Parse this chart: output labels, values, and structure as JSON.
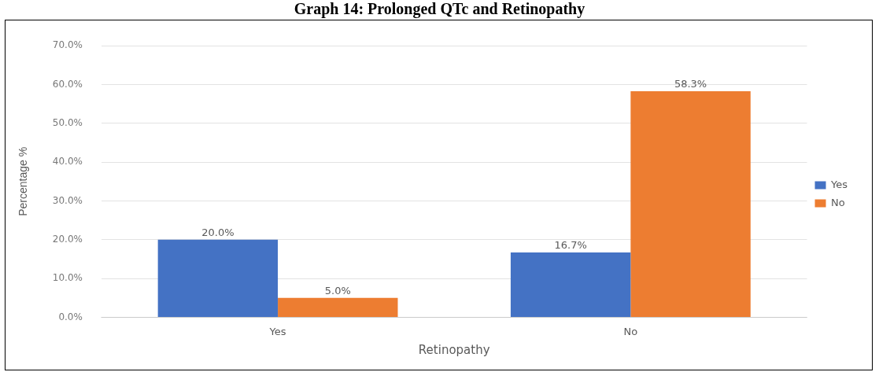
{
  "chart_data": {
    "type": "bar",
    "title": "Graph 14: Prolonged QTc and Retinopathy",
    "xlabel": "Retinopathy",
    "ylabel": "Percentage %",
    "categories": [
      "Yes",
      "No"
    ],
    "series": [
      {
        "name": "Yes",
        "color": "#4472c4",
        "values": [
          20.0,
          16.7
        ],
        "value_labels": [
          "20.0%",
          "16.7%"
        ]
      },
      {
        "name": "No",
        "color": "#ed7d31",
        "values": [
          5.0,
          58.3
        ],
        "value_labels": [
          "5.0%",
          "58.3%"
        ]
      }
    ],
    "ylim": [
      0,
      70
    ],
    "yticks": [
      {
        "value": 0,
        "label": "0.0%"
      },
      {
        "value": 10,
        "label": "10.0%"
      },
      {
        "value": 20,
        "label": "20.0%"
      },
      {
        "value": 30,
        "label": "30.0%"
      },
      {
        "value": 40,
        "label": "40.0%"
      },
      {
        "value": 50,
        "label": "50.0%"
      },
      {
        "value": 60,
        "label": "60.0%"
      },
      {
        "value": 70,
        "label": "70.0%"
      }
    ],
    "grid": "y",
    "legend": "right"
  }
}
